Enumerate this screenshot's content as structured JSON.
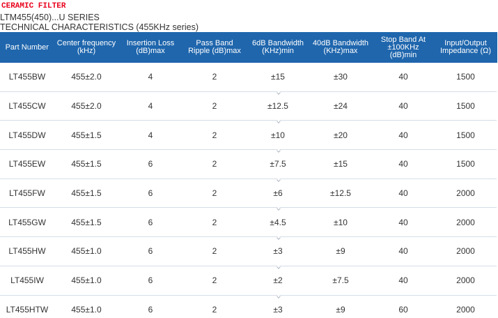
{
  "header": {
    "brand_title": "CERAMIC FILTER",
    "series_line": "LTM455(450)...U SERIES",
    "tech_line": "TECHNICAL CHARACTERISTICS (455KHz series)"
  },
  "table": {
    "columns": [
      "Part Number",
      "Center frequency (kHz)",
      "Insertion Loss (dB)max",
      "Pass Band Ripple (dB)max",
      "6dB Bandwidth (KHz)min",
      "40dB Bandwidth (KHz)max",
      "Stop Band At ±100KHz (dB)min",
      "Input/Output Impedance (Ω)"
    ],
    "rows": [
      [
        "LT455BW",
        "455±2.0",
        "4",
        "2",
        "±15",
        "±30",
        "40",
        "1500"
      ],
      [
        "LT455CW",
        "455±2.0",
        "4",
        "2",
        "±12.5",
        "±24",
        "40",
        "1500"
      ],
      [
        "LT455DW",
        "455±1.5",
        "4",
        "2",
        "±10",
        "±20",
        "40",
        "1500"
      ],
      [
        "LT455EW",
        "455±1.5",
        "6",
        "2",
        "±7.5",
        "±15",
        "40",
        "1500"
      ],
      [
        "LT455FW",
        "455±1.5",
        "6",
        "2",
        "±6",
        "±12.5",
        "40",
        "2000"
      ],
      [
        "LT455GW",
        "455±1.5",
        "6",
        "2",
        "±4.5",
        "±10",
        "40",
        "2000"
      ],
      [
        "LT455HW",
        "455±1.0",
        "6",
        "2",
        "±3",
        "±9",
        "40",
        "2000"
      ],
      [
        "LT455IW",
        "455±1.0",
        "6",
        "2",
        "±2",
        "±7.5",
        "40",
        "2000"
      ],
      [
        "LT455HTW",
        "455±1.0",
        "6",
        "2",
        "±3",
        "±9",
        "60",
        "2000"
      ]
    ]
  },
  "colors": {
    "brand_red": "#e8001c",
    "header_blue": "#1f66ad",
    "header_text": "#ffffff",
    "body_text": "#333333"
  }
}
